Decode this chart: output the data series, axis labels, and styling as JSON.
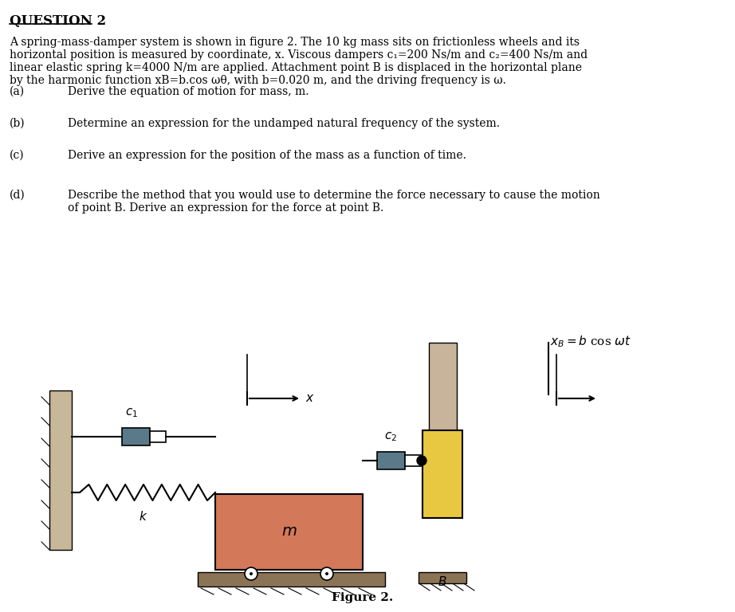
{
  "title": "QUESTION 2",
  "bg_color": "#ffffff",
  "text_color": "#000000",
  "paragraph": "A spring-mass-damper system is shown in figure 2. The 10 kg mass sits on frictionless wheels and its\nhorizontal position is measured by coordinate, x. Viscous dampers c₁=200 Ns/m and c₂=400 Ns/m and\nlinear elastic spring k=4000 N/m are applied. Attachment point B is displaced in the horizontal plane\nby the harmonic function xB=b.cos ωθ, with b=0.020 m, and the driving frequency is ω.",
  "items": [
    {
      "label": "(a)",
      "text": "Derive the equation of motion for mass, m."
    },
    {
      "label": "(b)",
      "text": "Determine an expression for the undamped natural frequency of the system."
    },
    {
      "label": "(c)",
      "text": "Derive an expression for the position of the mass as a function of time."
    },
    {
      "label": "(d)",
      "text": "Describe the method that you would use to determine the force necessary to cause the motion\nof point B. Derive an expression for the force at point B."
    }
  ],
  "figure_caption": "Figure 2.",
  "wall_color": "#c8b89a",
  "mass_color": "#d4785a",
  "damper_color": "#5a7a8a",
  "spring_color": "#404040",
  "ground_color": "#8b7355",
  "point_B_color": "#e8c840",
  "B_base_color": "#8b7355"
}
